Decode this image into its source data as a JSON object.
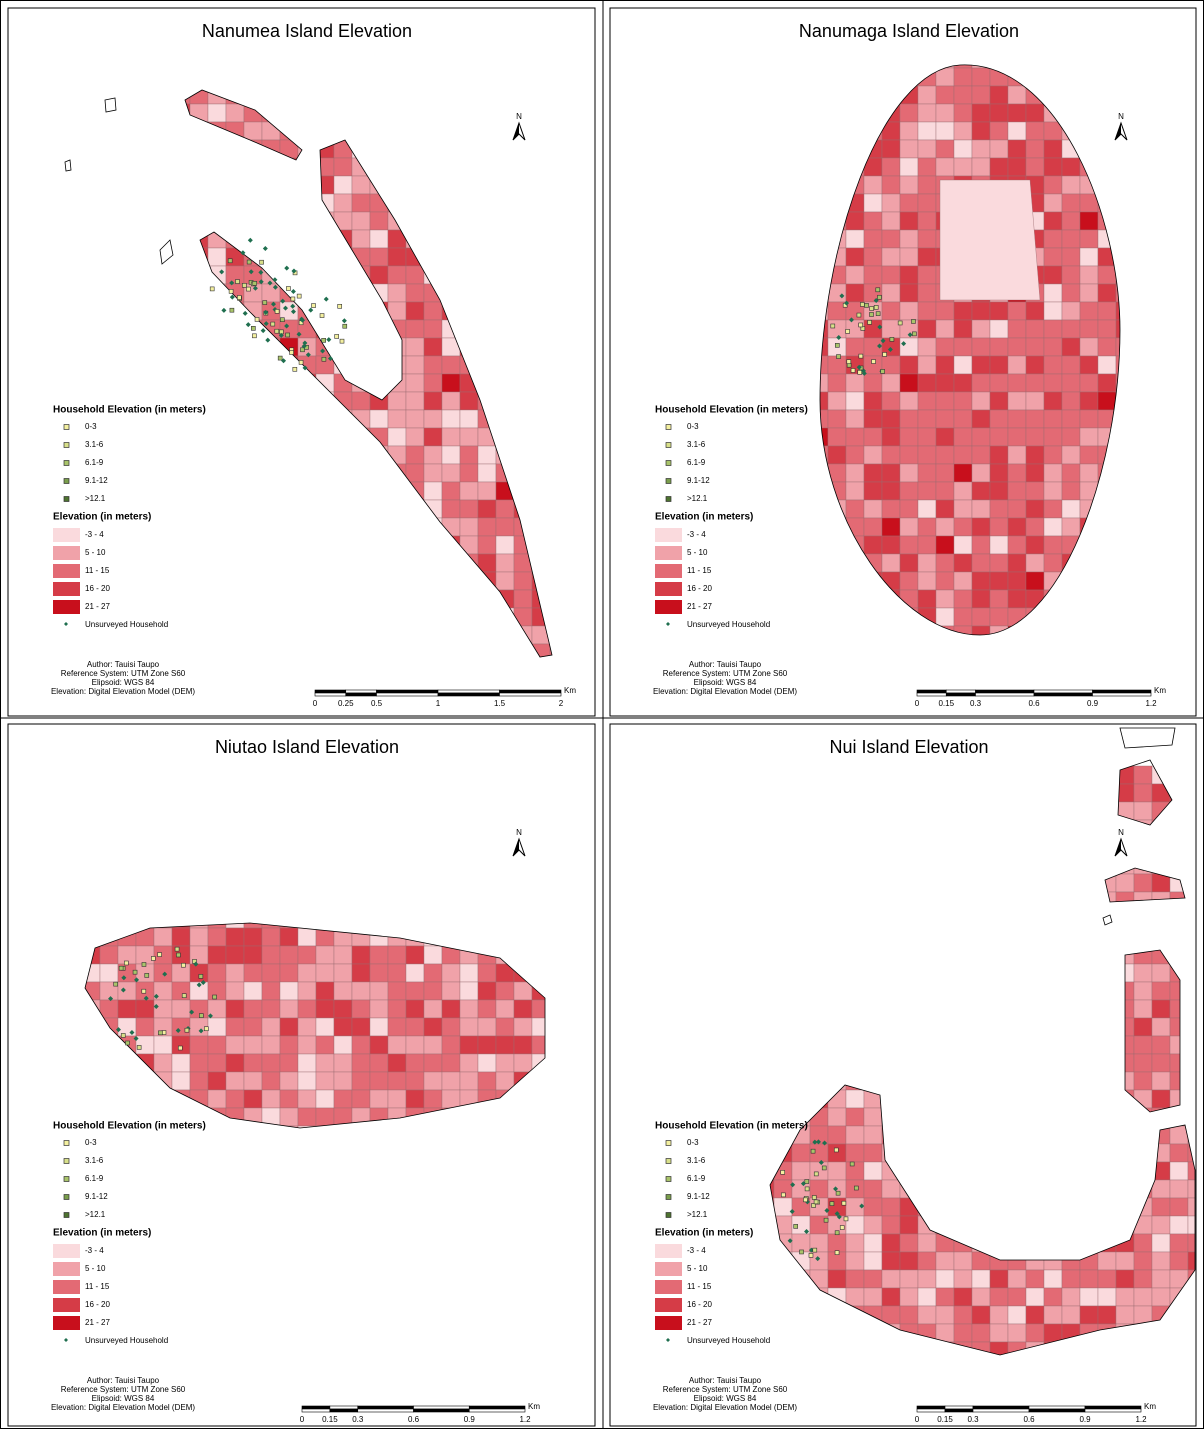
{
  "panels": [
    {
      "title": "Nanumea Island Elevation",
      "north": "N",
      "household_legend": {
        "title": "Household Elevation (in meters)",
        "classes": [
          {
            "label": "0-3",
            "color": "#f4f0a0"
          },
          {
            "label": "3.1-6",
            "color": "#d8e08a"
          },
          {
            "label": "6.1-9",
            "color": "#a9c46a"
          },
          {
            "label": "9.1-12",
            "color": "#7a9e4c"
          },
          {
            "label": ">12.1",
            "color": "#4e7330"
          }
        ]
      },
      "elevation_legend": {
        "title": "Elevation (in meters)",
        "classes": [
          {
            "label": "-3 - 4",
            "color": "#fadadd"
          },
          {
            "label": "5 - 10",
            "color": "#f0a2a9"
          },
          {
            "label": "11 - 15",
            "color": "#e36a74"
          },
          {
            "label": "16 - 20",
            "color": "#d53c47"
          },
          {
            "label": "21 - 27",
            "color": "#c80f1c"
          }
        ]
      },
      "unsurveyed": "Unsurveyed Household",
      "credits": [
        "Author: Tauisi Taupo",
        "Reference System: UTM Zone S60",
        "Elipsoid: WGS 84",
        "Elevation: Digital Elevation Model (DEM)"
      ],
      "scale": {
        "ticks": [
          "0",
          "0.25",
          "0.5",
          "1",
          "1.5",
          "2"
        ],
        "unit": "Km"
      }
    },
    {
      "title": "Nanumaga Island Elevation",
      "north": "N",
      "household_legend": {
        "title": "Household Elevation (in meters)",
        "classes": [
          {
            "label": "0-3",
            "color": "#f4f0a0"
          },
          {
            "label": "3.1-6",
            "color": "#d8e08a"
          },
          {
            "label": "6.1-9",
            "color": "#a9c46a"
          },
          {
            "label": "9.1-12",
            "color": "#7a9e4c"
          },
          {
            "label": ">12.1",
            "color": "#4e7330"
          }
        ]
      },
      "elevation_legend": {
        "title": "Elevation (in meters)",
        "classes": [
          {
            "label": "-3 - 4",
            "color": "#fadadd"
          },
          {
            "label": "5 - 10",
            "color": "#f0a2a9"
          },
          {
            "label": "11 - 15",
            "color": "#e36a74"
          },
          {
            "label": "16 - 20",
            "color": "#d53c47"
          },
          {
            "label": "21 - 27",
            "color": "#c80f1c"
          }
        ]
      },
      "unsurveyed": "Unsurveyed Household",
      "credits": [
        "Author: Tauisi Taupo",
        "Reference System: UTM Zone S60",
        "Elipsoid: WGS 84",
        "Elevation: Digital Elevation Model (DEM)"
      ],
      "scale": {
        "ticks": [
          "0",
          "0.15",
          "0.3",
          "0.6",
          "0.9",
          "1.2"
        ],
        "unit": "Km"
      }
    },
    {
      "title": "Niutao Island Elevation",
      "north": "N",
      "household_legend": {
        "title": "Household Elevation (in meters)",
        "classes": [
          {
            "label": "0-3",
            "color": "#f4f0a0"
          },
          {
            "label": "3.1-6",
            "color": "#d8e08a"
          },
          {
            "label": "6.1-9",
            "color": "#a9c46a"
          },
          {
            "label": "9.1-12",
            "color": "#7a9e4c"
          },
          {
            "label": ">12.1",
            "color": "#4e7330"
          }
        ]
      },
      "elevation_legend": {
        "title": "Elevation (in meters)",
        "classes": [
          {
            "label": "-3 - 4",
            "color": "#fadadd"
          },
          {
            "label": "5 - 10",
            "color": "#f0a2a9"
          },
          {
            "label": "11 - 15",
            "color": "#e36a74"
          },
          {
            "label": "16 - 20",
            "color": "#d53c47"
          },
          {
            "label": "21 - 27",
            "color": "#c80f1c"
          }
        ]
      },
      "unsurveyed": "Unsurveyed Household",
      "credits": [
        "Author: Tauisi Taupo",
        "Reference System: UTM Zone S60",
        "Elipsoid: WGS 84",
        "Elevation: Digital Elevation Model (DEM)"
      ],
      "scale": {
        "ticks": [
          "0",
          "0.15",
          "0.3",
          "0.6",
          "0.9",
          "1.2"
        ],
        "unit": "Km"
      }
    },
    {
      "title": "Nui Island Elevation",
      "north": "N",
      "household_legend": {
        "title": "Household Elevation (in meters)",
        "classes": [
          {
            "label": "0-3",
            "color": "#f4f0a0"
          },
          {
            "label": "3.1-6",
            "color": "#d8e08a"
          },
          {
            "label": "6.1-9",
            "color": "#a9c46a"
          },
          {
            "label": "9.1-12",
            "color": "#7a9e4c"
          },
          {
            "label": ">12.1",
            "color": "#4e7330"
          }
        ]
      },
      "elevation_legend": {
        "title": "Elevation (in meters)",
        "classes": [
          {
            "label": "-3 - 4",
            "color": "#fadadd"
          },
          {
            "label": "5 - 10",
            "color": "#f0a2a9"
          },
          {
            "label": "11 - 15",
            "color": "#e36a74"
          },
          {
            "label": "16 - 20",
            "color": "#d53c47"
          },
          {
            "label": "21 - 27",
            "color": "#c80f1c"
          }
        ]
      },
      "unsurveyed": "Unsurveyed Household",
      "credits": [
        "Author: Tauisi Taupo",
        "Reference System: UTM Zone S60",
        "Elipsoid: WGS 84",
        "Elevation: Digital Elevation Model (DEM)"
      ],
      "scale": {
        "ticks": [
          "0",
          "0.15",
          "0.3",
          "0.6",
          "0.9",
          "1.2"
        ],
        "unit": "Km"
      }
    }
  ]
}
